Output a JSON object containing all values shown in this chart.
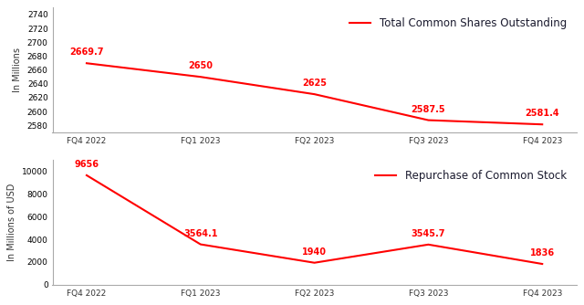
{
  "categories": [
    "FQ4 2022",
    "FQ1 2023",
    "FQ2 2023",
    "FQ3 2023",
    "FQ4 2023"
  ],
  "shares": [
    2669.7,
    2650,
    2625,
    2587.5,
    2581.4
  ],
  "repurchase": [
    9656,
    3564.1,
    1940,
    3545.7,
    1836
  ],
  "shares_label": "Total Common Shares Outstanding",
  "repurchase_label": "Repurchase of Common Stock",
  "shares_ylabel": "In Millions",
  "repurchase_ylabel": "In Millions of USD",
  "line_color": "#ff0000",
  "shares_ylim": [
    2570,
    2750
  ],
  "shares_yticks": [
    2580,
    2600,
    2620,
    2640,
    2660,
    2680,
    2700,
    2720,
    2740
  ],
  "repurchase_ylim": [
    0,
    11000
  ],
  "repurchase_yticks": [
    0,
    2000,
    4000,
    6000,
    8000,
    10000
  ],
  "background_color": "#ffffff",
  "font_size_label": 7.0,
  "font_size_tick": 6.5,
  "font_size_data": 7.0,
  "font_size_legend": 8.5,
  "legend_text_color": "#1a1a2e",
  "axis_text_color": "#333333",
  "spine_color": "#aaaaaa"
}
